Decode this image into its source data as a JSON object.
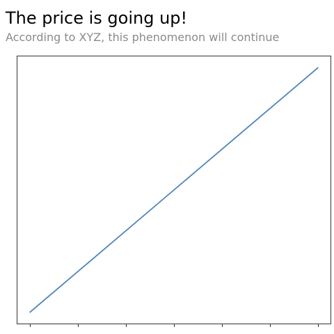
{
  "header": {
    "title": "The price is going up!",
    "subtitle": "According to XYZ, this phenomenon will continue"
  },
  "colors": {
    "title": "#000000",
    "subtitle": "#8a8a8a",
    "axes": "#333333",
    "line": "#4e84b8"
  },
  "chart_data": {
    "type": "line",
    "title": "The price is going up!",
    "subtitle": "According to XYZ, this phenomenon will continue",
    "xlabel": "",
    "ylabel": "",
    "x": [
      0,
      6
    ],
    "series": [
      {
        "values": [
          0,
          1
        ]
      }
    ],
    "xlim": [
      -0.28,
      6.28
    ],
    "ylim": [
      -0.05,
      1.05
    ],
    "x_ticks": [
      0,
      1,
      2,
      3,
      4,
      5,
      6
    ],
    "x_tick_labels_visible": false,
    "y_ticks_visible": false,
    "grid": false,
    "legend": "none"
  }
}
